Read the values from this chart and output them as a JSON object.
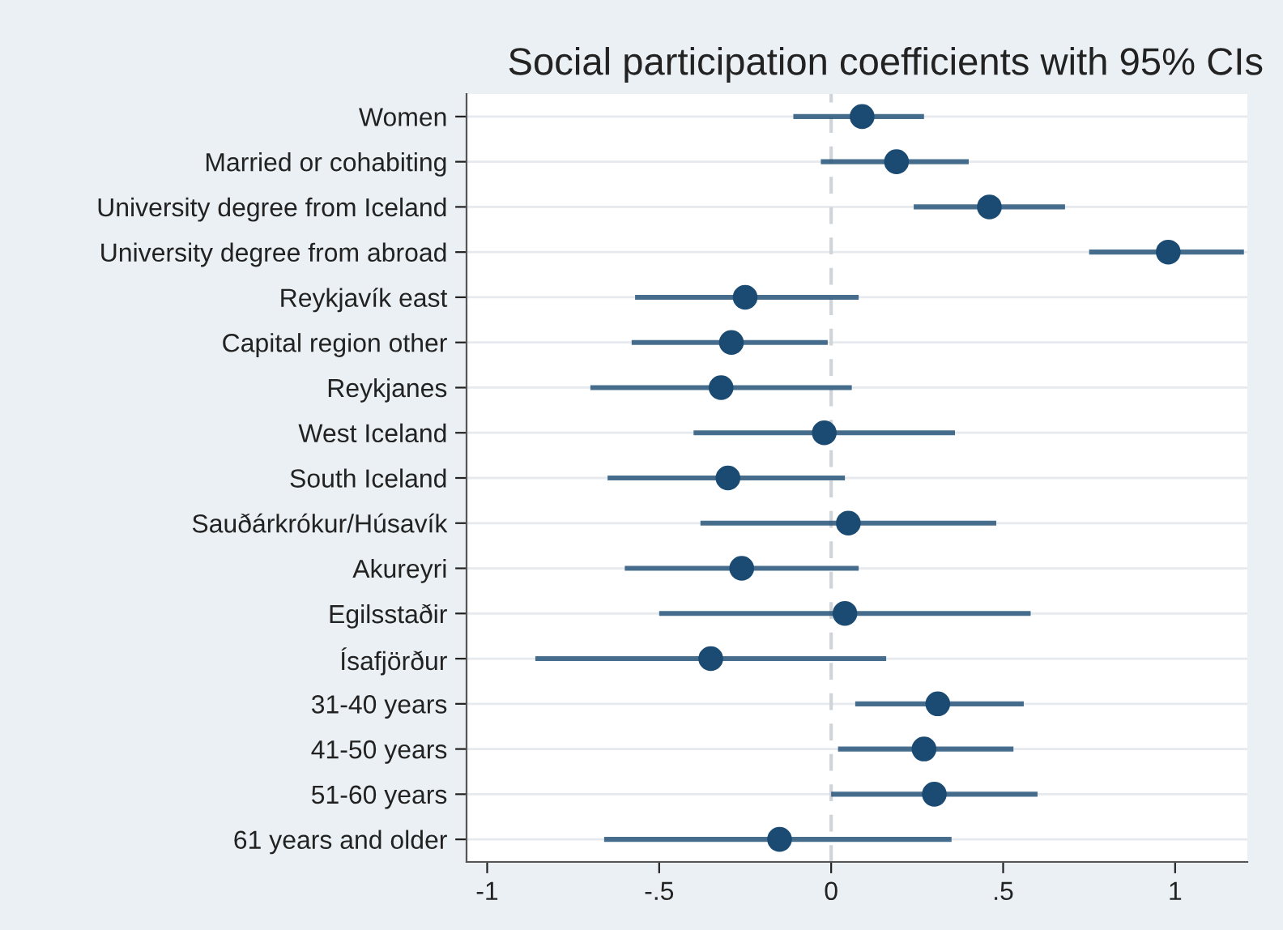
{
  "chart_data": {
    "type": "scatter",
    "orientation": "horizontal",
    "title": "Social participation coefficients with 95% CIs",
    "categories": [
      "Women",
      "Married or cohabiting",
      "University degree from Iceland",
      "University degree from abroad",
      "Reykjavík east",
      "Capital region other",
      "Reykjanes",
      "West Iceland",
      "South Iceland",
      "Sauðárkrókur/Húsavík",
      "Akureyri",
      "Egilsstaðir",
      "Ísafjörður",
      "31-40 years",
      "41-50 years",
      "51-60 years",
      "61 years and older"
    ],
    "series": [
      {
        "color": "#1b4b72",
        "values": [
          0.09,
          0.19,
          0.46,
          0.98,
          -0.25,
          -0.29,
          -0.32,
          -0.02,
          -0.3,
          0.05,
          -0.26,
          0.04,
          -0.35,
          0.31,
          0.27,
          0.3,
          -0.15
        ],
        "errors": [
          [
            -0.11,
            0.27
          ],
          [
            -0.03,
            0.4
          ],
          [
            0.24,
            0.68
          ],
          [
            0.75,
            1.2
          ],
          [
            -0.57,
            0.08
          ],
          [
            -0.58,
            -0.01
          ],
          [
            -0.7,
            0.06
          ],
          [
            -0.4,
            0.36
          ],
          [
            -0.65,
            0.04
          ],
          [
            -0.38,
            0.48
          ],
          [
            -0.6,
            0.08
          ],
          [
            -0.5,
            0.58
          ],
          [
            -0.86,
            0.16
          ],
          [
            0.07,
            0.56
          ],
          [
            0.02,
            0.53
          ],
          [
            0.0,
            0.6
          ],
          [
            -0.66,
            0.35
          ]
        ]
      }
    ],
    "marker": "circle",
    "xlim": [
      -1.06,
      1.21
    ],
    "xticks": [
      -1,
      {
        "value": -0.5,
        "label": "-.5"
      },
      0,
      {
        "value": 0.5,
        "label": ".5"
      },
      1
    ],
    "ref_lines": [
      {
        "axis": "x",
        "value": 0,
        "color": "#d0d4d8",
        "line_style": "dashed"
      }
    ],
    "grid": "y"
  }
}
